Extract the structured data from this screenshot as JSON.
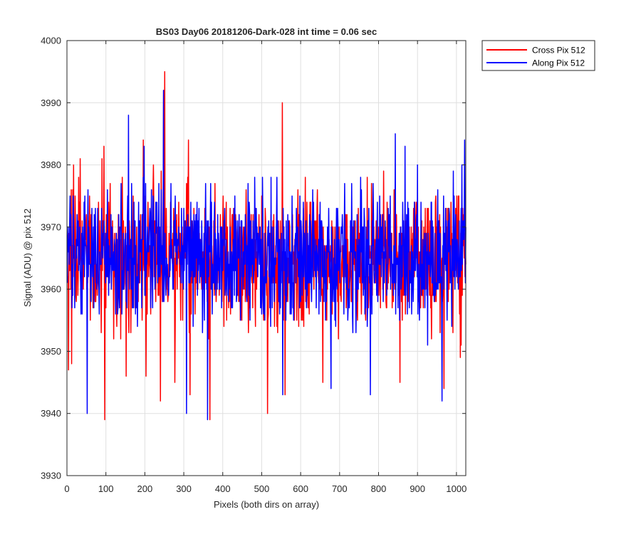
{
  "chart_data": {
    "type": "line",
    "title": "BS03 Day06 20181206-Dark-028 int time = 0.06 sec",
    "xlabel": "Pixels (both dirs on array)",
    "ylabel": "Signal (ADU) @ pix 512",
    "xlim": [
      0,
      1024
    ],
    "ylim": [
      3930,
      4000
    ],
    "xticks": [
      0,
      100,
      200,
      300,
      400,
      500,
      600,
      700,
      800,
      900,
      1000
    ],
    "yticks": [
      3930,
      3940,
      3950,
      3960,
      3970,
      3980,
      3990,
      4000
    ],
    "xtick_labels": [
      "0",
      "100",
      "200",
      "300",
      "400",
      "500",
      "600",
      "700",
      "800",
      "900",
      "1000"
    ],
    "ytick_labels": [
      "3930",
      "3940",
      "3950",
      "3960",
      "3970",
      "3980",
      "3990",
      "4000"
    ],
    "grid": true,
    "legend_position": "outside-top-right",
    "series": [
      {
        "name": "Cross Pix 512",
        "color": "#ff0000",
        "mean": 3965,
        "x_start": 1,
        "x_end": 1024,
        "samples": 1024,
        "peaks": [
          {
            "x": 4,
            "y": 3947
          },
          {
            "x": 12,
            "y": 3948
          },
          {
            "x": 30,
            "y": 3978
          },
          {
            "x": 34,
            "y": 3981
          },
          {
            "x": 90,
            "y": 3981
          },
          {
            "x": 95,
            "y": 3983
          },
          {
            "x": 97,
            "y": 3939
          },
          {
            "x": 152,
            "y": 3946
          },
          {
            "x": 159,
            "y": 3953
          },
          {
            "x": 196,
            "y": 3984
          },
          {
            "x": 203,
            "y": 3946
          },
          {
            "x": 222,
            "y": 3980
          },
          {
            "x": 240,
            "y": 3942
          },
          {
            "x": 248,
            "y": 3992
          },
          {
            "x": 251,
            "y": 3995
          },
          {
            "x": 277,
            "y": 3945
          },
          {
            "x": 312,
            "y": 3984
          },
          {
            "x": 316,
            "y": 3943
          },
          {
            "x": 367,
            "y": 3939
          },
          {
            "x": 515,
            "y": 3940
          },
          {
            "x": 553,
            "y": 3990
          },
          {
            "x": 560,
            "y": 3943
          },
          {
            "x": 612,
            "y": 3978
          },
          {
            "x": 657,
            "y": 3945
          },
          {
            "x": 855,
            "y": 3945
          },
          {
            "x": 968,
            "y": 3944
          },
          {
            "x": 1010,
            "y": 3949
          }
        ]
      },
      {
        "name": "Along Pix 512",
        "color": "#0000ff",
        "mean": 3965,
        "x_start": 1,
        "x_end": 1024,
        "samples": 1024,
        "peaks": [
          {
            "x": 52,
            "y": 3940
          },
          {
            "x": 158,
            "y": 3988
          },
          {
            "x": 198,
            "y": 3983
          },
          {
            "x": 248,
            "y": 3992
          },
          {
            "x": 307,
            "y": 3940
          },
          {
            "x": 361,
            "y": 3939
          },
          {
            "x": 465,
            "y": 3977
          },
          {
            "x": 554,
            "y": 3943
          },
          {
            "x": 678,
            "y": 3944
          },
          {
            "x": 779,
            "y": 3943
          },
          {
            "x": 843,
            "y": 3985
          },
          {
            "x": 868,
            "y": 3983
          },
          {
            "x": 900,
            "y": 3980
          },
          {
            "x": 963,
            "y": 3942
          },
          {
            "x": 1014,
            "y": 3980
          },
          {
            "x": 1021,
            "y": 3984
          }
        ]
      }
    ]
  }
}
